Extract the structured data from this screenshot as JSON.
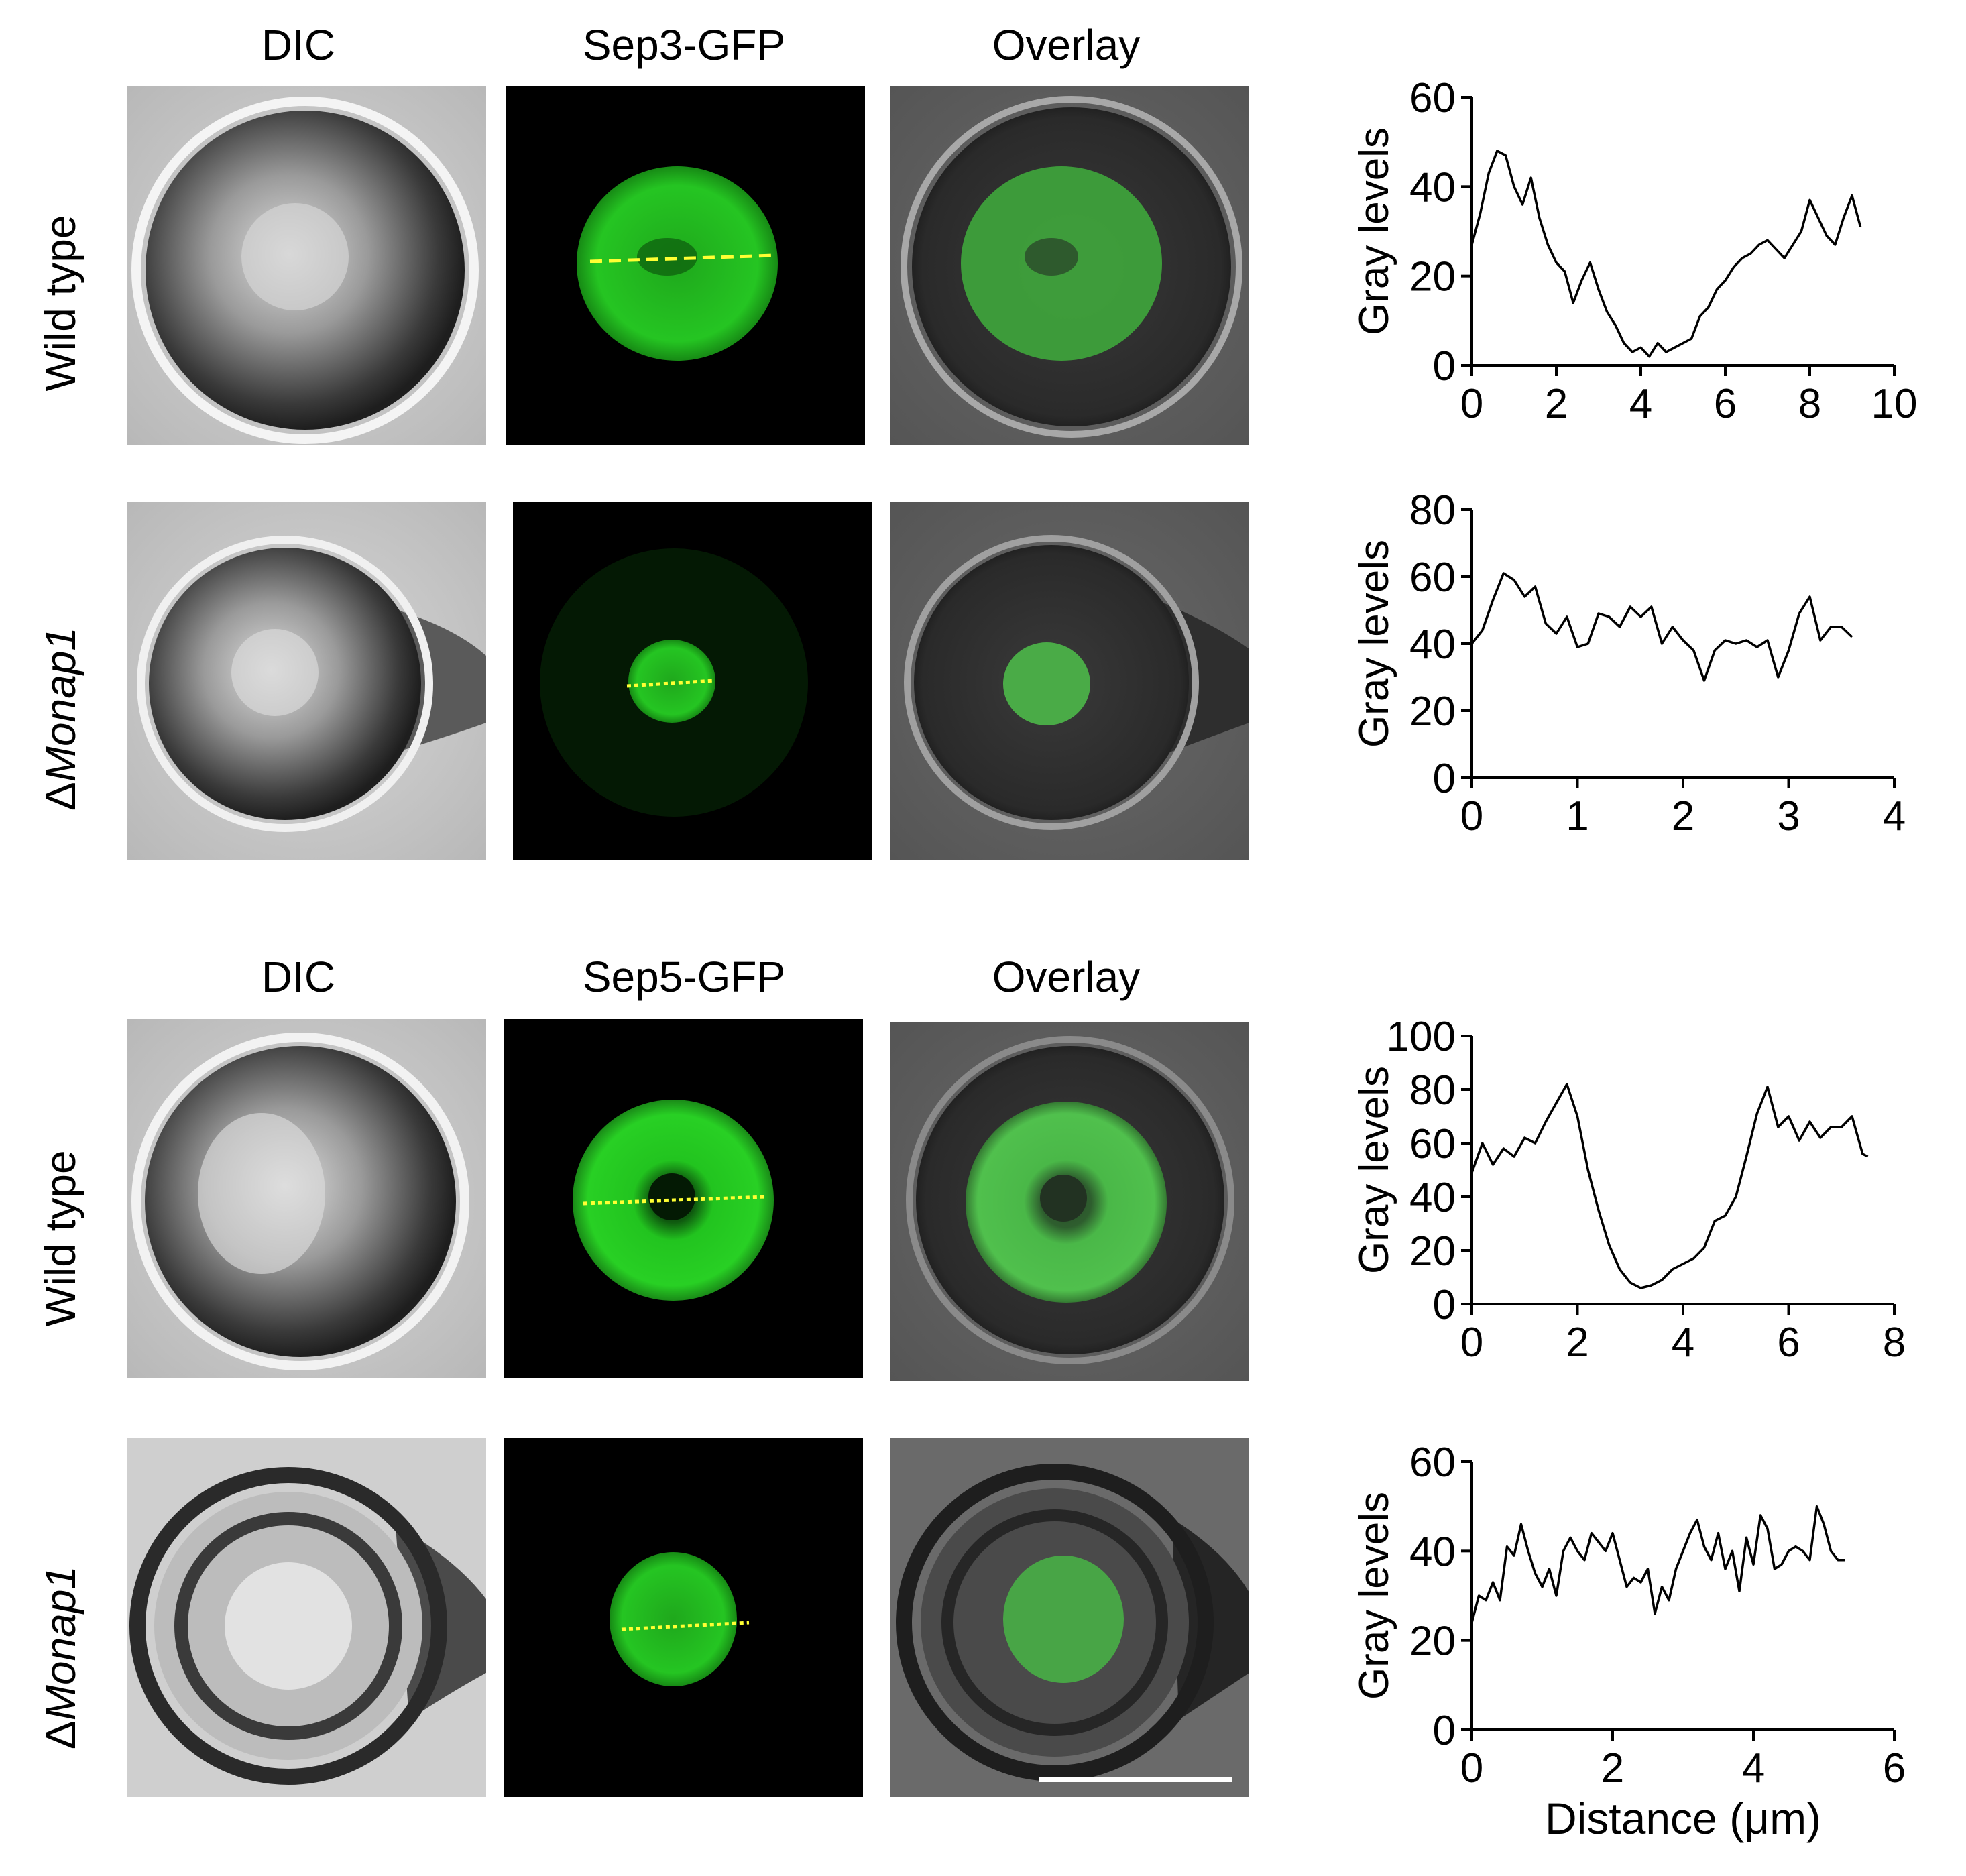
{
  "sections": [
    {
      "columns": [
        "DIC",
        "Sep3-GFP",
        "Overlay"
      ],
      "rows": [
        {
          "label_prefix": "",
          "label_italic": "",
          "label_plain": "Wild type"
        },
        {
          "label_prefix": "Δ",
          "label_italic": "Monap1",
          "label_plain": ""
        }
      ]
    },
    {
      "columns": [
        "DIC",
        "Sep5-GFP",
        "Overlay"
      ],
      "rows": [
        {
          "label_prefix": "",
          "label_italic": "",
          "label_plain": "Wild type"
        },
        {
          "label_prefix": "Δ",
          "label_italic": "Monap1",
          "label_plain": ""
        }
      ]
    }
  ],
  "colors": {
    "gfp": "#22d11f",
    "line": "#000000",
    "dashed_line": "#ffff33"
  },
  "chart_data": [
    {
      "type": "line",
      "ylabel": "Gray levels",
      "xlabel": "",
      "xlim": [
        0,
        10
      ],
      "ylim": [
        0,
        60
      ],
      "xticks": [
        0,
        2,
        4,
        6,
        8,
        10
      ],
      "yticks": [
        0,
        20,
        40,
        60
      ],
      "series": [
        {
          "x": [
            0,
            0.2,
            0.4,
            0.6,
            0.8,
            1.0,
            1.2,
            1.4,
            1.6,
            1.8,
            2.0,
            2.2,
            2.4,
            2.6,
            2.8,
            3.0,
            3.2,
            3.4,
            3.6,
            3.8,
            4.0,
            4.2,
            4.4,
            4.6,
            4.8,
            5.0,
            5.2,
            5.4,
            5.6,
            5.8,
            6.0,
            6.2,
            6.4,
            6.6,
            6.8,
            7.0,
            7.2,
            7.4,
            7.6,
            7.8,
            8.0,
            8.2,
            8.4,
            8.6,
            8.8,
            9.0,
            9.2
          ],
          "y": [
            27,
            34,
            43,
            48,
            47,
            40,
            36,
            42,
            33,
            27,
            23,
            21,
            14,
            19,
            23,
            17,
            12,
            9,
            5,
            3,
            4,
            2,
            5,
            3,
            4,
            5,
            6,
            11,
            13,
            17,
            19,
            22,
            24,
            25,
            27,
            28,
            26,
            24,
            27,
            30,
            37,
            33,
            29,
            27,
            33,
            38,
            31
          ]
        }
      ]
    },
    {
      "type": "line",
      "ylabel": "Gray levels",
      "xlabel": "",
      "xlim": [
        0,
        4
      ],
      "ylim": [
        0,
        80
      ],
      "xticks": [
        0,
        1,
        2,
        3,
        4
      ],
      "yticks": [
        0,
        20,
        40,
        60,
        80
      ],
      "series": [
        {
          "x": [
            0,
            0.1,
            0.2,
            0.3,
            0.4,
            0.5,
            0.6,
            0.7,
            0.8,
            0.9,
            1.0,
            1.1,
            1.2,
            1.3,
            1.4,
            1.5,
            1.6,
            1.7,
            1.8,
            1.9,
            2.0,
            2.1,
            2.2,
            2.3,
            2.4,
            2.5,
            2.6,
            2.7,
            2.8,
            2.9,
            3.0,
            3.1,
            3.2,
            3.3,
            3.4,
            3.5,
            3.6
          ],
          "y": [
            40,
            44,
            53,
            61,
            59,
            54,
            57,
            46,
            43,
            48,
            39,
            40,
            49,
            48,
            45,
            51,
            48,
            51,
            40,
            45,
            41,
            38,
            29,
            38,
            41,
            40,
            41,
            39,
            41,
            30,
            38,
            49,
            54,
            41,
            45,
            45,
            42
          ]
        }
      ]
    },
    {
      "type": "line",
      "ylabel": "Gray levels",
      "xlabel": "",
      "xlim": [
        0,
        8
      ],
      "ylim": [
        0,
        100
      ],
      "xticks": [
        0,
        2,
        4,
        6,
        8
      ],
      "yticks": [
        0,
        20,
        40,
        60,
        80,
        100
      ],
      "series": [
        {
          "x": [
            0,
            0.2,
            0.4,
            0.6,
            0.8,
            1.0,
            1.2,
            1.4,
            1.6,
            1.8,
            2.0,
            2.2,
            2.4,
            2.6,
            2.8,
            3.0,
            3.2,
            3.4,
            3.6,
            3.8,
            4.0,
            4.2,
            4.4,
            4.6,
            4.8,
            5.0,
            5.2,
            5.4,
            5.6,
            5.8,
            6.0,
            6.2,
            6.4,
            6.6,
            6.8,
            7.0,
            7.2,
            7.4,
            7.5
          ],
          "y": [
            49,
            60,
            52,
            58,
            55,
            62,
            60,
            68,
            75,
            82,
            70,
            50,
            35,
            22,
            13,
            8,
            6,
            7,
            9,
            13,
            15,
            17,
            21,
            31,
            33,
            40,
            55,
            71,
            81,
            66,
            70,
            61,
            68,
            62,
            66,
            66,
            70,
            56,
            55
          ]
        }
      ]
    },
    {
      "type": "line",
      "ylabel": "Gray levels",
      "xlabel": "Distance (μm)",
      "xlim": [
        0,
        6
      ],
      "ylim": [
        0,
        60
      ],
      "xticks": [
        0,
        2,
        4,
        6
      ],
      "yticks": [
        0,
        20,
        40,
        60
      ],
      "series": [
        {
          "x": [
            0,
            0.1,
            0.2,
            0.3,
            0.4,
            0.5,
            0.6,
            0.7,
            0.8,
            0.9,
            1.0,
            1.1,
            1.2,
            1.3,
            1.4,
            1.5,
            1.6,
            1.7,
            1.8,
            1.9,
            2.0,
            2.1,
            2.2,
            2.3,
            2.4,
            2.5,
            2.6,
            2.7,
            2.8,
            2.9,
            3.0,
            3.1,
            3.2,
            3.3,
            3.4,
            3.5,
            3.6,
            3.7,
            3.8,
            3.9,
            4.0,
            4.1,
            4.2,
            4.3,
            4.4,
            4.5,
            4.6,
            4.7,
            4.8,
            4.9,
            5.0,
            5.1,
            5.2,
            5.3
          ],
          "y": [
            24,
            30,
            29,
            33,
            29,
            41,
            39,
            46,
            40,
            35,
            32,
            36,
            30,
            40,
            43,
            40,
            38,
            44,
            42,
            40,
            44,
            38,
            32,
            34,
            33,
            36,
            26,
            32,
            29,
            36,
            40,
            44,
            47,
            41,
            38,
            44,
            36,
            40,
            31,
            43,
            37,
            48,
            45,
            36,
            37,
            40,
            41,
            40,
            38,
            50,
            46,
            40,
            38,
            38
          ]
        }
      ]
    }
  ],
  "scale_bar_present": true
}
